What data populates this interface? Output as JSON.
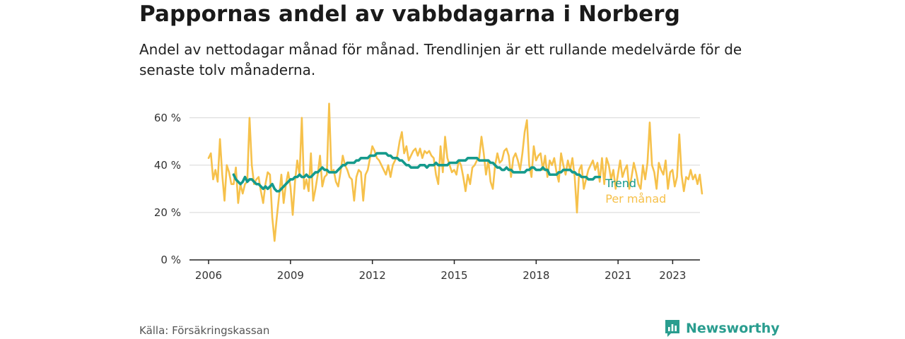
{
  "title": "Pappornas andel av vabbdagarna i Norberg",
  "subtitle": "Andel av nettodagar månad för månad. Trendlinjen är ett rullande medelvärde för de senaste tolv månaderna.",
  "source": "Källa: Försäkringskassan",
  "brand": {
    "name": "Newsworthy",
    "icon": "newsworthy-logo-icon",
    "color": "#2a9d8f"
  },
  "chart_data": {
    "type": "line",
    "x_unit": "year",
    "xlim": [
      2005.3,
      2024.0
    ],
    "ylim": [
      0,
      65
    ],
    "y_ticks": [
      0,
      20,
      40,
      60
    ],
    "y_tick_labels": [
      "0 %",
      "20 %",
      "40 %",
      "60 %"
    ],
    "x_ticks": [
      2006,
      2009,
      2012,
      2015,
      2018,
      2021,
      2023
    ],
    "x_tick_labels": [
      "2006",
      "2009",
      "2012",
      "2015",
      "2018",
      "2021",
      "2023"
    ],
    "grid": true,
    "legend": "inline-right",
    "series": [
      {
        "name": "Per månad",
        "color": "#f6c14b",
        "start": 2006.0,
        "step": 0.0833,
        "values": [
          43,
          45,
          34,
          38,
          33,
          51,
          36,
          25,
          40,
          37,
          32,
          32,
          39,
          24,
          32,
          28,
          32,
          33,
          60,
          40,
          32,
          34,
          35,
          29,
          24,
          32,
          37,
          36,
          18,
          8,
          18,
          27,
          36,
          24,
          32,
          37,
          31,
          19,
          33,
          42,
          36,
          60,
          30,
          34,
          29,
          45,
          25,
          30,
          36,
          44,
          31,
          35,
          36,
          66,
          37,
          38,
          33,
          31,
          37,
          44,
          40,
          38,
          35,
          34,
          25,
          35,
          38,
          37,
          25,
          36,
          38,
          43,
          48,
          46,
          43,
          42,
          40,
          38,
          36,
          40,
          35,
          40,
          42,
          44,
          50,
          54,
          45,
          48,
          42,
          44,
          46,
          47,
          44,
          47,
          43,
          46,
          45,
          46,
          44,
          43,
          36,
          32,
          48,
          37,
          52,
          43,
          40,
          37,
          38,
          36,
          42,
          40,
          35,
          29,
          36,
          32,
          39,
          40,
          42,
          43,
          52,
          45,
          36,
          42,
          33,
          30,
          40,
          45,
          41,
          42,
          46,
          47,
          44,
          35,
          43,
          45,
          42,
          38,
          45,
          54,
          59,
          40,
          35,
          48,
          42,
          44,
          45,
          38,
          44,
          35,
          42,
          40,
          43,
          37,
          33,
          45,
          40,
          36,
          42,
          38,
          43,
          35,
          20,
          38,
          40,
          30,
          34,
          38,
          40,
          42,
          38,
          41,
          33,
          43,
          32,
          43,
          40,
          34,
          38,
          30,
          36,
          42,
          35,
          38,
          40,
          30,
          35,
          41,
          37,
          32,
          30,
          40,
          34,
          41,
          58,
          40,
          37,
          30,
          41,
          38,
          36,
          42,
          30,
          37,
          38,
          31,
          35,
          53,
          36,
          29,
          35,
          34,
          38,
          34,
          36,
          32,
          36,
          28
        ]
      },
      {
        "name": "Trend",
        "color": "#159a8c",
        "start": 2006.917,
        "step": 0.0833,
        "values": [
          36,
          34,
          33,
          32,
          33,
          35,
          33,
          34,
          34,
          33,
          32,
          32,
          31,
          30,
          31,
          30,
          31,
          32,
          30,
          29,
          29,
          30,
          31,
          32,
          33,
          34,
          34,
          35,
          35,
          36,
          35,
          35,
          36,
          35,
          35,
          36,
          37,
          37,
          38,
          39,
          38,
          38,
          37,
          37,
          37,
          37,
          38,
          39,
          40,
          40,
          41,
          41,
          41,
          41,
          42,
          42,
          43,
          43,
          43,
          43,
          44,
          44,
          44,
          45,
          45,
          45,
          45,
          45,
          44,
          44,
          43,
          43,
          43,
          42,
          42,
          41,
          40,
          40,
          39,
          39,
          39,
          39,
          40,
          40,
          40,
          39,
          40,
          40,
          40,
          41,
          40,
          40,
          40,
          40,
          40,
          41,
          41,
          41,
          41,
          42,
          42,
          42,
          42,
          43,
          43,
          43,
          43,
          43,
          42,
          42,
          42,
          42,
          42,
          41,
          41,
          40,
          39,
          39,
          38,
          38,
          39,
          38,
          38,
          37,
          37,
          37,
          37,
          37,
          37,
          38,
          38,
          39,
          39,
          38,
          38,
          38,
          39,
          38,
          38,
          36,
          36,
          36,
          36,
          37,
          37,
          38,
          38,
          38,
          38,
          37,
          37,
          36,
          36,
          35,
          35,
          35,
          34,
          34,
          34,
          35,
          35,
          35
        ]
      }
    ]
  }
}
